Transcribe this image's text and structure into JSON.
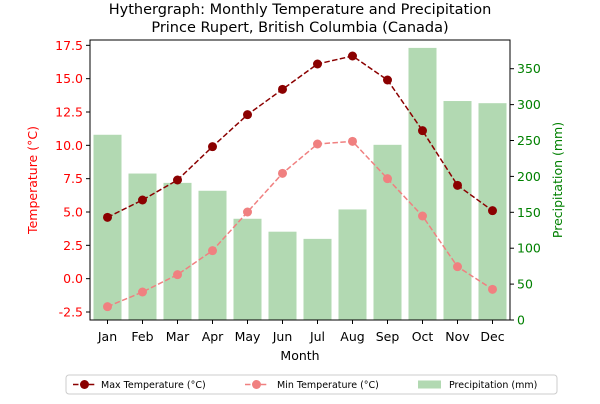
{
  "chart_data": {
    "type": "bar+line",
    "title_line1": "Hythergraph: Monthly Temperature and Precipitation",
    "title_line2": "Prince Rupert, British Columbia (Canada)",
    "xlabel": "Month",
    "ylabel_left": "Temperature (°C)",
    "ylabel_right": "Precipitation (mm)",
    "categories": [
      "Jan",
      "Feb",
      "Mar",
      "Apr",
      "May",
      "Jun",
      "Jul",
      "Aug",
      "Sep",
      "Oct",
      "Nov",
      "Dec"
    ],
    "y_left_lim": [
      -3.1,
      17.9
    ],
    "y_left_ticks": [
      "-2.5",
      "0.0",
      "2.5",
      "5.0",
      "7.5",
      "10.0",
      "12.5",
      "15.0",
      "17.5"
    ],
    "y_right_lim": [
      0,
      390
    ],
    "y_right_ticks": [
      "0",
      "50",
      "100",
      "150",
      "200",
      "250",
      "300",
      "350"
    ],
    "series": [
      {
        "name": "Max Temperature (°C)",
        "kind": "line",
        "axis": "left",
        "color": "#8b0000",
        "values": [
          4.6,
          5.9,
          7.4,
          9.9,
          12.3,
          14.2,
          16.1,
          16.7,
          14.9,
          11.1,
          7.0,
          5.1
        ]
      },
      {
        "name": "Min Temperature (°C)",
        "kind": "line",
        "axis": "left",
        "color": "#f08080",
        "values": [
          -2.1,
          -1.0,
          0.3,
          2.1,
          5.0,
          7.9,
          10.1,
          10.3,
          7.5,
          4.7,
          0.9,
          -0.8
        ]
      },
      {
        "name": "Precipitation (mm)",
        "kind": "bar",
        "axis": "right",
        "color": "#b2d9b2",
        "values": [
          258,
          204,
          191,
          180,
          141,
          123,
          113,
          154,
          244,
          379,
          305,
          302
        ]
      }
    ],
    "legend_position": "bottom-center",
    "grid": false
  },
  "colors": {
    "left_axis": "#ff0000",
    "right_axis": "#008000",
    "bar": "#b2d9b2",
    "max_line": "#8b0000",
    "min_line": "#f08080"
  }
}
